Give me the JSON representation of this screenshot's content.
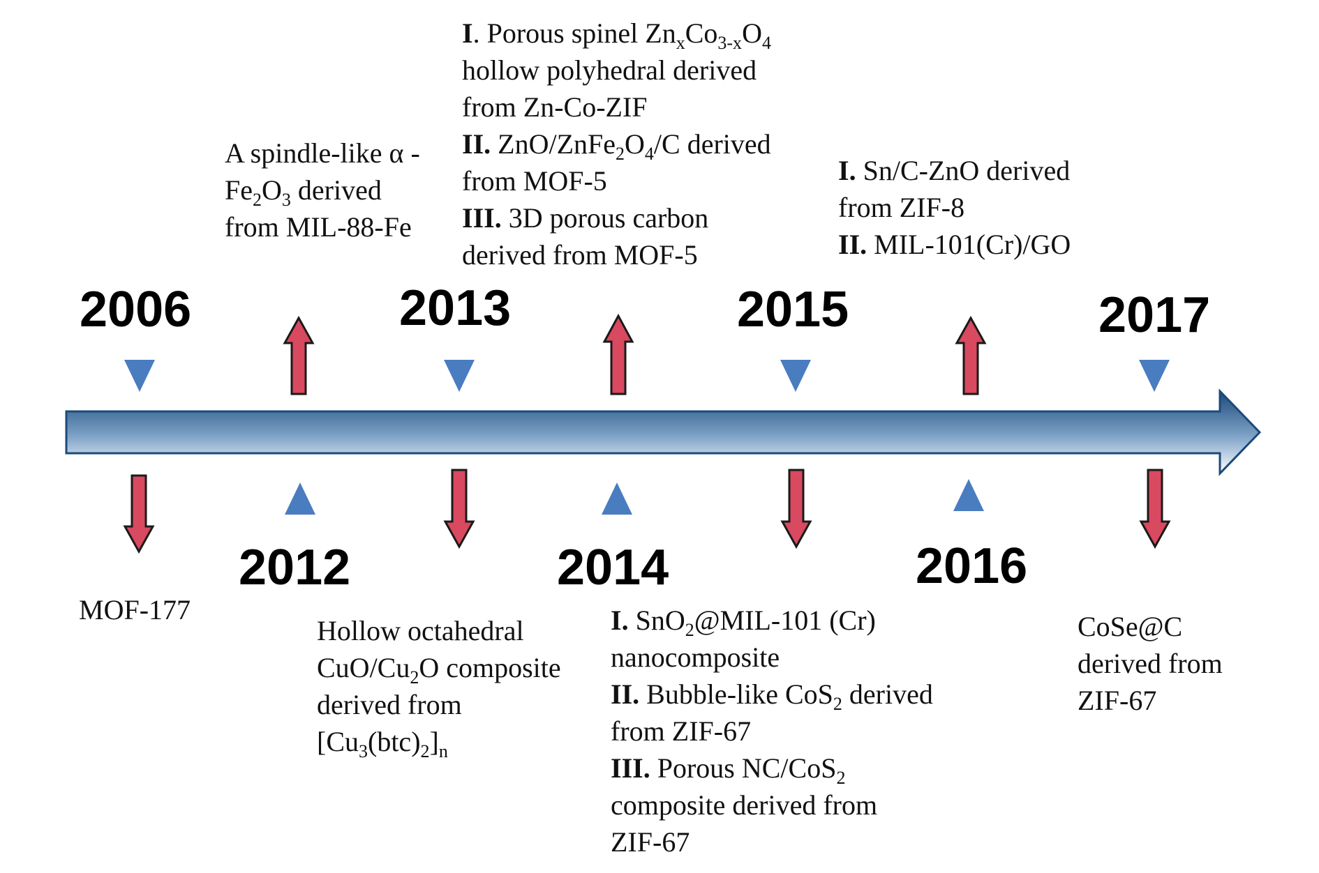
{
  "years": {
    "y2006": "2006",
    "y2012": "2012",
    "y2013": "2013",
    "y2014": "2014",
    "y2015": "2015",
    "y2016": "2016",
    "y2017": "2017"
  },
  "colors": {
    "timeline_dark": "#1b4a7a",
    "timeline_light": "#ffffff",
    "triangle": "#4a7cc0",
    "arrow_fill": "#d9495f",
    "arrow_stroke": "#1a1a1a"
  },
  "notes": {
    "n2006": {
      "t1": "MOF-177"
    },
    "n2012": {
      "l1": "A spindle-like α -",
      "l2a": "Fe",
      "l2s1": "2",
      "l2b": "O",
      "l2s2": "3",
      "l2c": " derived",
      "l3": "from MIL-88-Fe"
    },
    "n2013b": {
      "l1": "Hollow octahedral",
      "l2a": "CuO/Cu",
      "l2s": "2",
      "l2b": "O composite",
      "l3": "derived from",
      "l4a": "[Cu",
      "l4s1": "3",
      "l4b": "(btc)",
      "l4s2": "2",
      "l4c": "]",
      "l4s3": "n"
    },
    "n2013t": {
      "i1": "I",
      "l1a": ". Porous spinel Zn",
      "l1s1": "x",
      "l1b": "Co",
      "l1s2": "3-x",
      "l1c": "O",
      "l1s3": "4",
      "l2": "hollow polyhedral  derived",
      "l3": "from Zn-Co-ZIF",
      "i2": "II.",
      "l4a": " ZnO/ZnFe",
      "l4s1": "2",
      "l4b": "O",
      "l4s2": "4",
      "l4c": "/C  derived",
      "l5": "from MOF-5",
      "i3": "III.",
      "l6": " 3D porous carbon",
      "l7": "derived from  MOF-5"
    },
    "n2015b": {
      "i1": "I.",
      "l1a": " SnO",
      "l1s": "2",
      "l1b": "@MIL-101 (Cr)",
      "l2": "nanocomposite",
      "i2": "II.",
      "l3a": " Bubble-like CoS",
      "l3s": "2",
      "l3b": " derived",
      "l4": "from ZIF-67",
      "i3": "III.",
      "l5a": " Porous NC/CoS",
      "l5s": "2",
      "l6": "composite  derived from",
      "l7": "ZIF-67"
    },
    "n2016": {
      "i1": "I.",
      "l1": " Sn/C-ZnO derived",
      "l2": "from ZIF-8",
      "i2": "II.",
      "l3": " MIL-101(Cr)/GO"
    },
    "n2017": {
      "l1": "CoSe@C",
      "l2": "derived from",
      "l3": "ZIF-67"
    }
  }
}
